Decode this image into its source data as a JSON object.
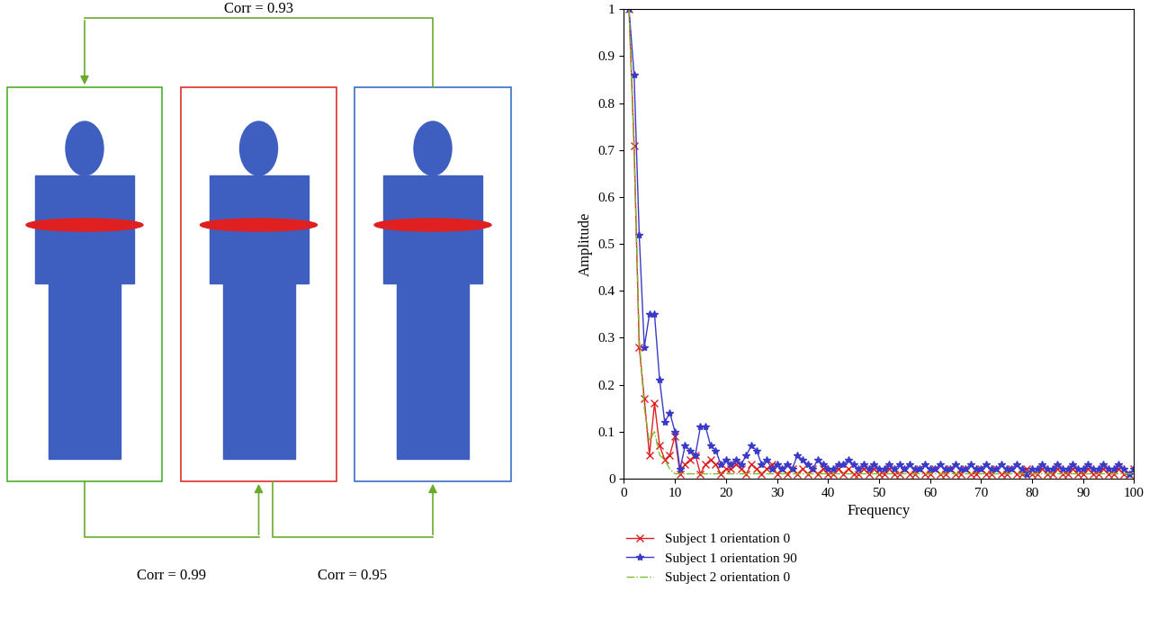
{
  "chart_data": {
    "type": "line",
    "x_label": "Frequency",
    "y_label": "Amplitude",
    "x": [
      1,
      2,
      3,
      4,
      5,
      6,
      7,
      8,
      9,
      10,
      11,
      12,
      13,
      14,
      15,
      16,
      17,
      18,
      19,
      20,
      21,
      22,
      23,
      24,
      25,
      26,
      27,
      28,
      29,
      30,
      31,
      32,
      33,
      34,
      35,
      36,
      37,
      38,
      39,
      40,
      41,
      42,
      43,
      44,
      45,
      46,
      47,
      48,
      49,
      50,
      51,
      52,
      53,
      54,
      55,
      56,
      57,
      58,
      59,
      60,
      61,
      62,
      63,
      64,
      65,
      66,
      67,
      68,
      69,
      70,
      71,
      72,
      73,
      74,
      75,
      76,
      77,
      78,
      79,
      80,
      81,
      82,
      83,
      84,
      85,
      86,
      87,
      88,
      89,
      90,
      91,
      92,
      93,
      94,
      95,
      96,
      97,
      98,
      99,
      100
    ],
    "series": [
      {
        "name": "Subject 1 orientation 0",
        "color": "#e02020",
        "marker": "x",
        "line_style": "solid",
        "values": [
          1.0,
          0.71,
          0.28,
          0.17,
          0.05,
          0.16,
          0.07,
          0.04,
          0.05,
          0.09,
          0.01,
          0.03,
          0.04,
          0.05,
          0.01,
          0.03,
          0.04,
          0.03,
          0.01,
          0.02,
          0.02,
          0.03,
          0.02,
          0.01,
          0.03,
          0.02,
          0.01,
          0.02,
          0.03,
          0.01,
          0.02,
          0.01,
          0.02,
          0.01,
          0.02,
          0.01,
          0.02,
          0.01,
          0.02,
          0.01,
          0.01,
          0.02,
          0.01,
          0.02,
          0.01,
          0.01,
          0.02,
          0.01,
          0.02,
          0.01,
          0.01,
          0.02,
          0.01,
          0.01,
          0.02,
          0.01,
          0.01,
          0.02,
          0.01,
          0.01,
          0.02,
          0.01,
          0.01,
          0.02,
          0.01,
          0.01,
          0.02,
          0.01,
          0.01,
          0.02,
          0.01,
          0.01,
          0.02,
          0.01,
          0.01,
          0.02,
          0.01,
          0.01,
          0.02,
          0.01,
          0.01,
          0.02,
          0.01,
          0.01,
          0.02,
          0.01,
          0.01,
          0.02,
          0.01,
          0.01,
          0.02,
          0.01,
          0.01,
          0.02,
          0.01,
          0.01,
          0.02,
          0.01,
          0.01,
          0.02
        ]
      },
      {
        "name": "Subject 1 orientation 90",
        "color": "#3a3ac8",
        "marker": "*",
        "line_style": "solid",
        "values": [
          1.0,
          0.86,
          0.52,
          0.28,
          0.35,
          0.35,
          0.21,
          0.12,
          0.14,
          0.1,
          0.02,
          0.07,
          0.06,
          0.05,
          0.11,
          0.11,
          0.07,
          0.06,
          0.03,
          0.04,
          0.03,
          0.04,
          0.03,
          0.05,
          0.07,
          0.06,
          0.03,
          0.04,
          0.02,
          0.03,
          0.02,
          0.03,
          0.02,
          0.05,
          0.04,
          0.03,
          0.02,
          0.04,
          0.03,
          0.02,
          0.02,
          0.03,
          0.03,
          0.04,
          0.03,
          0.02,
          0.03,
          0.02,
          0.03,
          0.02,
          0.02,
          0.03,
          0.02,
          0.03,
          0.02,
          0.03,
          0.02,
          0.02,
          0.03,
          0.02,
          0.02,
          0.03,
          0.02,
          0.02,
          0.03,
          0.02,
          0.02,
          0.03,
          0.02,
          0.02,
          0.03,
          0.02,
          0.02,
          0.03,
          0.02,
          0.02,
          0.03,
          0.02,
          0.01,
          0.02,
          0.02,
          0.03,
          0.02,
          0.02,
          0.03,
          0.02,
          0.02,
          0.03,
          0.02,
          0.02,
          0.03,
          0.02,
          0.02,
          0.03,
          0.02,
          0.02,
          0.03,
          0.02,
          0.01,
          0.02
        ]
      },
      {
        "name": "Subject 2 orientation 0",
        "color": "#7ac030",
        "marker": "none",
        "line_style": "dashdot",
        "values": [
          1.0,
          0.7,
          0.3,
          0.15,
          0.08,
          0.1,
          0.05,
          0.04,
          0.02,
          0.01,
          0.01,
          0.01,
          0.01,
          0.01,
          0.01,
          0.01,
          0.01,
          0.01,
          0.01,
          0.01,
          0.01,
          0.01,
          0.01,
          0.01,
          0.01,
          0.01,
          0.01,
          0.01,
          0.01,
          0.01,
          0.01,
          0.01,
          0.01,
          0.01,
          0.01,
          0.01,
          0.01,
          0.01,
          0.01,
          0.01,
          0.01,
          0.01,
          0.01,
          0.01,
          0.01,
          0.01,
          0.01,
          0.01,
          0.01,
          0.01,
          0.01,
          0.01,
          0.01,
          0.01,
          0.01,
          0.01,
          0.01,
          0.01,
          0.01,
          0.01,
          0.01,
          0.01,
          0.01,
          0.01,
          0.01,
          0.01,
          0.01,
          0.01,
          0.01,
          0.01,
          0.01,
          0.01,
          0.01,
          0.01,
          0.01,
          0.01,
          0.01,
          0.01,
          0.01,
          0.01,
          0.01,
          0.01,
          0.01,
          0.01,
          0.01,
          0.01,
          0.01,
          0.01,
          0.01,
          0.01,
          0.01,
          0.01,
          0.01,
          0.01,
          0.01,
          0.01,
          0.01,
          0.01,
          0.01,
          0.01
        ]
      }
    ],
    "xlim": [
      0,
      100
    ],
    "xticks": [
      0,
      10,
      20,
      30,
      40,
      50,
      60,
      70,
      80,
      90,
      100
    ],
    "ylim": [
      0,
      1
    ],
    "yticks": [
      0,
      0.1,
      0.2,
      0.3,
      0.4,
      0.5,
      0.6,
      0.7,
      0.8,
      0.9,
      1
    ],
    "grid": false,
    "legend": "bottom"
  },
  "panels": {
    "frames": [
      {
        "color": "#4caf2a"
      },
      {
        "color": "#e0302a"
      },
      {
        "color": "#3a6fc4"
      }
    ],
    "link_color": "#6aaa2a",
    "links": [
      {
        "from": 2,
        "to": 0,
        "side": "top",
        "label": "Corr = 0.93"
      },
      {
        "from": 0,
        "to": 1,
        "side": "bottom",
        "label": "Corr = 0.99"
      },
      {
        "from": 1,
        "to": 2,
        "side": "bottom",
        "label": "Corr = 0.95"
      }
    ]
  }
}
